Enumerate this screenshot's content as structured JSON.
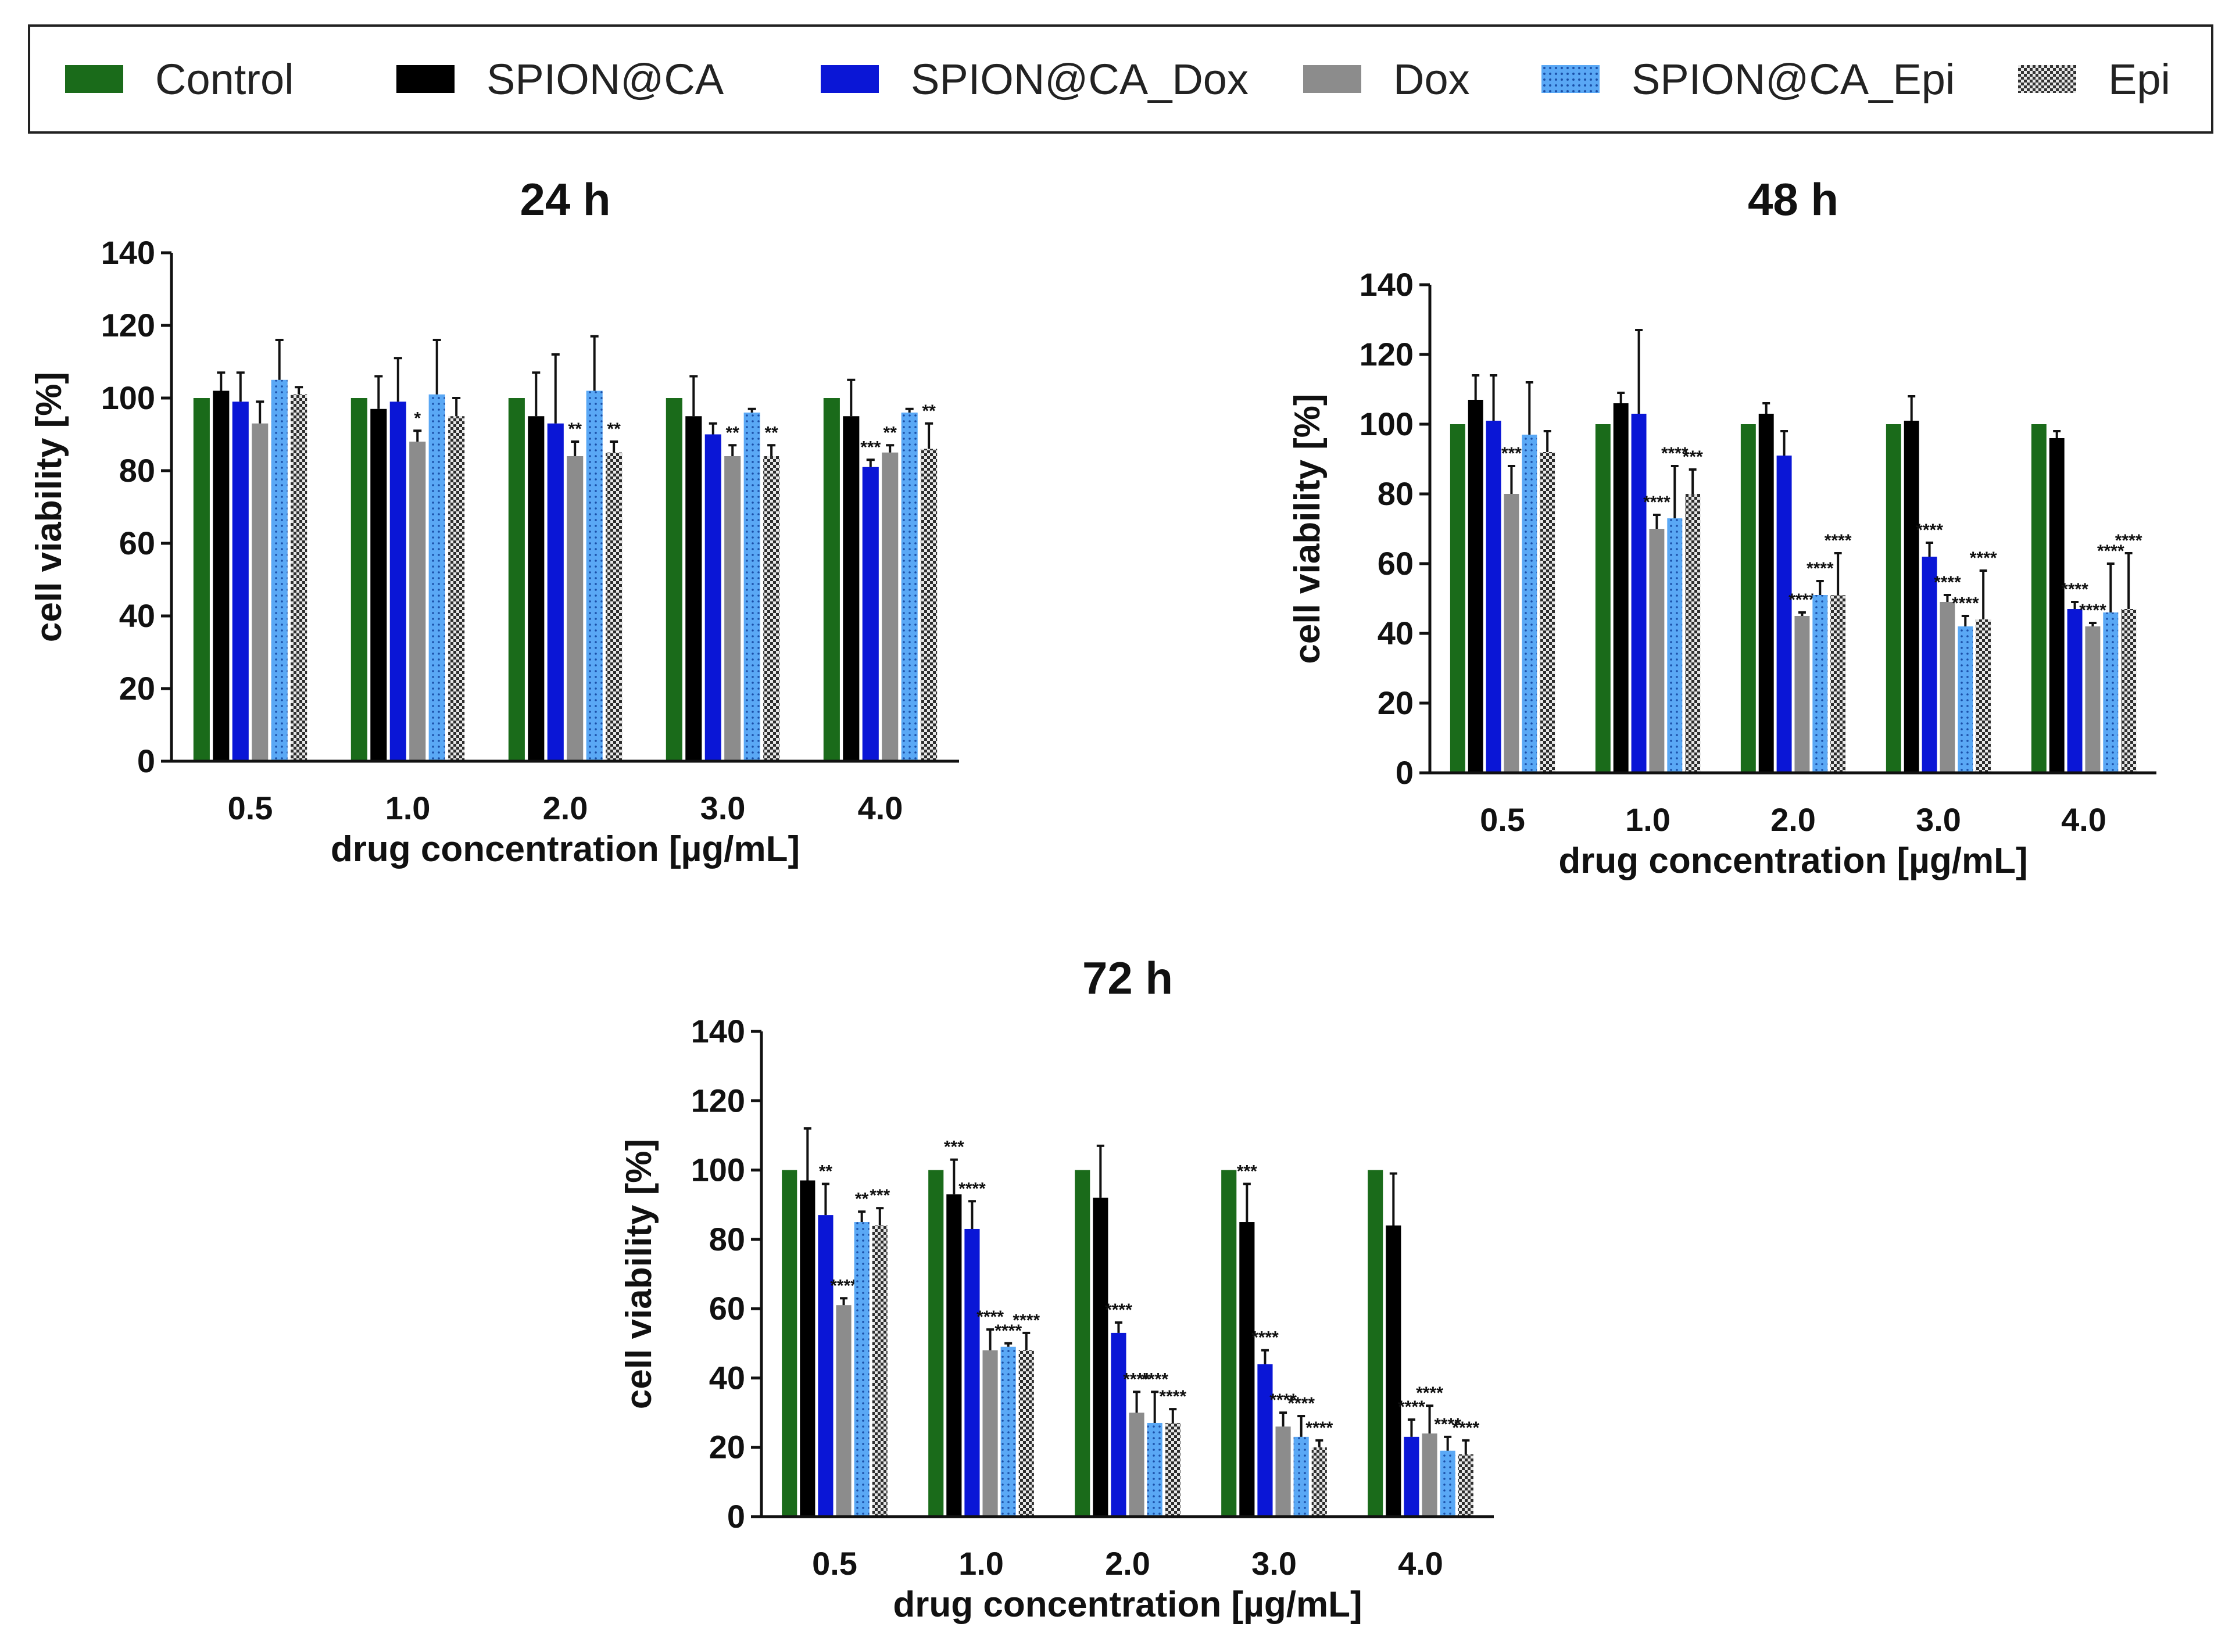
{
  "legend": [
    {
      "label": "Control",
      "color": "#1a6b1a",
      "pattern": "solid"
    },
    {
      "label": "SPION@CA",
      "color": "#000000",
      "pattern": "solid"
    },
    {
      "label": "SPION@CA_Dox",
      "color": "#0a16d6",
      "pattern": "solid"
    },
    {
      "label": "Dox",
      "color": "#8c8c8c",
      "pattern": "solid"
    },
    {
      "label": "SPION@CA_Epi",
      "color": "#5aa8f5",
      "pattern": "dots"
    },
    {
      "label": "Epi",
      "color": "#5a5a5a",
      "pattern": "checker"
    }
  ],
  "chart_data": [
    {
      "type": "bar",
      "title": "24 h",
      "xlabel": "drug concentration [µg/mL]",
      "ylabel": "cell viability [%]",
      "ylim": [
        0,
        140
      ],
      "yticks": [
        "0",
        "20",
        "40",
        "60",
        "80",
        "100",
        "120",
        "140"
      ],
      "categories": [
        "0.5",
        "1.0",
        "2.0",
        "3.0",
        "4.0"
      ],
      "series": [
        {
          "name": "Control",
          "values": [
            100,
            100,
            100,
            100,
            100
          ],
          "errors": [
            0,
            0,
            0,
            0,
            0
          ],
          "stars": [
            "",
            "",
            "",
            "",
            ""
          ]
        },
        {
          "name": "SPION@CA",
          "values": [
            102,
            97,
            95,
            95,
            95
          ],
          "errors": [
            5,
            9,
            12,
            11,
            10
          ],
          "stars": [
            "",
            "",
            "",
            "",
            ""
          ]
        },
        {
          "name": "SPION@CA_Dox",
          "values": [
            99,
            99,
            93,
            90,
            81
          ],
          "errors": [
            8,
            12,
            19,
            3,
            2
          ],
          "stars": [
            "",
            "",
            "",
            "",
            "***"
          ]
        },
        {
          "name": "Dox",
          "values": [
            93,
            88,
            84,
            84,
            85
          ],
          "errors": [
            6,
            3,
            4,
            3,
            2
          ],
          "stars": [
            "",
            "*",
            "**",
            "**",
            "**"
          ]
        },
        {
          "name": "SPION@CA_Epi",
          "values": [
            105,
            101,
            102,
            96,
            96
          ],
          "errors": [
            11,
            15,
            15,
            1,
            1
          ],
          "stars": [
            "",
            "",
            "",
            "",
            ""
          ]
        },
        {
          "name": "Epi",
          "values": [
            101,
            95,
            85,
            84,
            86
          ],
          "errors": [
            2,
            5,
            3,
            3,
            7
          ],
          "stars": [
            "",
            "",
            "**",
            "**",
            "**"
          ]
        }
      ]
    },
    {
      "type": "bar",
      "title": "48 h",
      "xlabel": "drug concentration [µg/mL]",
      "ylabel": "cell viability [%]",
      "ylim": [
        0,
        140
      ],
      "yticks": [
        "0",
        "20",
        "40",
        "60",
        "80",
        "100",
        "120",
        "140"
      ],
      "categories": [
        "0.5",
        "1.0",
        "2.0",
        "3.0",
        "4.0"
      ],
      "series": [
        {
          "name": "Control",
          "values": [
            100,
            100,
            100,
            100,
            100
          ],
          "errors": [
            0,
            0,
            0,
            0,
            0
          ],
          "stars": [
            "",
            "",
            "",
            "",
            ""
          ]
        },
        {
          "name": "SPION@CA",
          "values": [
            107,
            106,
            103,
            101,
            96
          ],
          "errors": [
            7,
            3,
            3,
            7,
            2
          ],
          "stars": [
            "",
            "",
            "",
            "",
            ""
          ]
        },
        {
          "name": "SPION@CA_Dox",
          "values": [
            101,
            103,
            91,
            62,
            47
          ],
          "errors": [
            13,
            24,
            7,
            4,
            2
          ],
          "stars": [
            "",
            "",
            "",
            "****",
            "****"
          ]
        },
        {
          "name": "Dox",
          "values": [
            80,
            70,
            45,
            49,
            42
          ],
          "errors": [
            8,
            4,
            1,
            2,
            1
          ],
          "stars": [
            "***",
            "****",
            "****",
            "****",
            "****"
          ]
        },
        {
          "name": "SPION@CA_Epi",
          "values": [
            97,
            73,
            51,
            42,
            46
          ],
          "errors": [
            15,
            15,
            4,
            3,
            14
          ],
          "stars": [
            "",
            "****",
            "****",
            "****",
            "****"
          ]
        },
        {
          "name": "Epi",
          "values": [
            92,
            80,
            51,
            44,
            47
          ],
          "errors": [
            6,
            7,
            12,
            14,
            16
          ],
          "stars": [
            "",
            "***",
            "****",
            "****",
            "****"
          ]
        }
      ]
    },
    {
      "type": "bar",
      "title": "72 h",
      "xlabel": "drug concentration [µg/mL]",
      "ylabel": "cell viability [%]",
      "ylim": [
        0,
        140
      ],
      "yticks": [
        "0",
        "20",
        "40",
        "60",
        "80",
        "100",
        "120",
        "140"
      ],
      "categories": [
        "0.5",
        "1.0",
        "2.0",
        "3.0",
        "4.0"
      ],
      "series": [
        {
          "name": "Control",
          "values": [
            100,
            100,
            100,
            100,
            100
          ],
          "errors": [
            0,
            0,
            0,
            0,
            0
          ],
          "stars": [
            "",
            "",
            "",
            "",
            ""
          ]
        },
        {
          "name": "SPION@CA",
          "values": [
            97,
            93,
            92,
            85,
            84
          ],
          "errors": [
            15,
            10,
            15,
            11,
            15
          ],
          "stars": [
            "",
            "***",
            "",
            "***",
            ""
          ]
        },
        {
          "name": "SPION@CA_Dox",
          "values": [
            87,
            83,
            53,
            44,
            23
          ],
          "errors": [
            9,
            8,
            3,
            4,
            5
          ],
          "stars": [
            "**",
            "****",
            "****",
            "****",
            "****"
          ]
        },
        {
          "name": "Dox",
          "values": [
            61,
            48,
            30,
            26,
            24
          ],
          "errors": [
            2,
            6,
            6,
            4,
            8
          ],
          "stars": [
            "****",
            "****",
            "****",
            "****",
            "****"
          ]
        },
        {
          "name": "SPION@CA_Epi",
          "values": [
            85,
            49,
            27,
            23,
            19
          ],
          "errors": [
            3,
            1,
            9,
            6,
            4
          ],
          "stars": [
            "**",
            "****",
            "****",
            "****",
            "****"
          ]
        },
        {
          "name": "Epi",
          "values": [
            84,
            48,
            27,
            20,
            18
          ],
          "errors": [
            5,
            5,
            4,
            2,
            4
          ],
          "stars": [
            "***",
            "****",
            "****",
            "****",
            "****"
          ]
        }
      ]
    }
  ]
}
